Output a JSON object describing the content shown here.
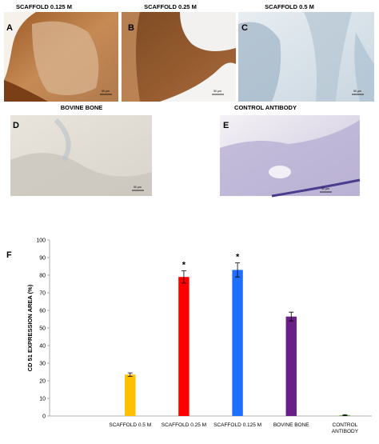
{
  "panels": [
    {
      "letter": "A",
      "title": "SCAFFOLD 0.125 M",
      "scale_bar": "50 µm"
    },
    {
      "letter": "B",
      "title": "SCAFFOLD 0.25 M",
      "scale_bar": "50 µm"
    },
    {
      "letter": "C",
      "title": "SCAFFOLD 0.5 M",
      "scale_bar": "50 µm"
    },
    {
      "letter": "D",
      "title": "BOVINE BONE",
      "scale_bar": "50 µm"
    },
    {
      "letter": "E",
      "title": "CONTROL ANTIBODY",
      "scale_bar": "50 µm"
    }
  ],
  "chart_data": {
    "type": "bar",
    "panel": "F",
    "ylabel": "CD 51 EXPRESSION AREA (%)",
    "categories": [
      null,
      "SCAFFOLD 0.5 M",
      "SCAFFOLD 0.25 M",
      "SCAFFOLD 0.125 M",
      "BOVINE BONE",
      "CONTROL ANTIBODY"
    ],
    "values": [
      null,
      23.5,
      79,
      83,
      56.5,
      0.5
    ],
    "errors": [
      null,
      1,
      3.5,
      4,
      2.5,
      0.3
    ],
    "colors": [
      null,
      "#ffc000",
      "#ff0000",
      "#1f6fff",
      "#6a1f86",
      "#70ad47"
    ],
    "significance": [
      null,
      null,
      "*",
      "*",
      null,
      null
    ],
    "ylim": [
      0,
      100
    ],
    "yticks": [
      0,
      10,
      20,
      30,
      40,
      50,
      60,
      70,
      80,
      90,
      100
    ],
    "grid": false
  }
}
